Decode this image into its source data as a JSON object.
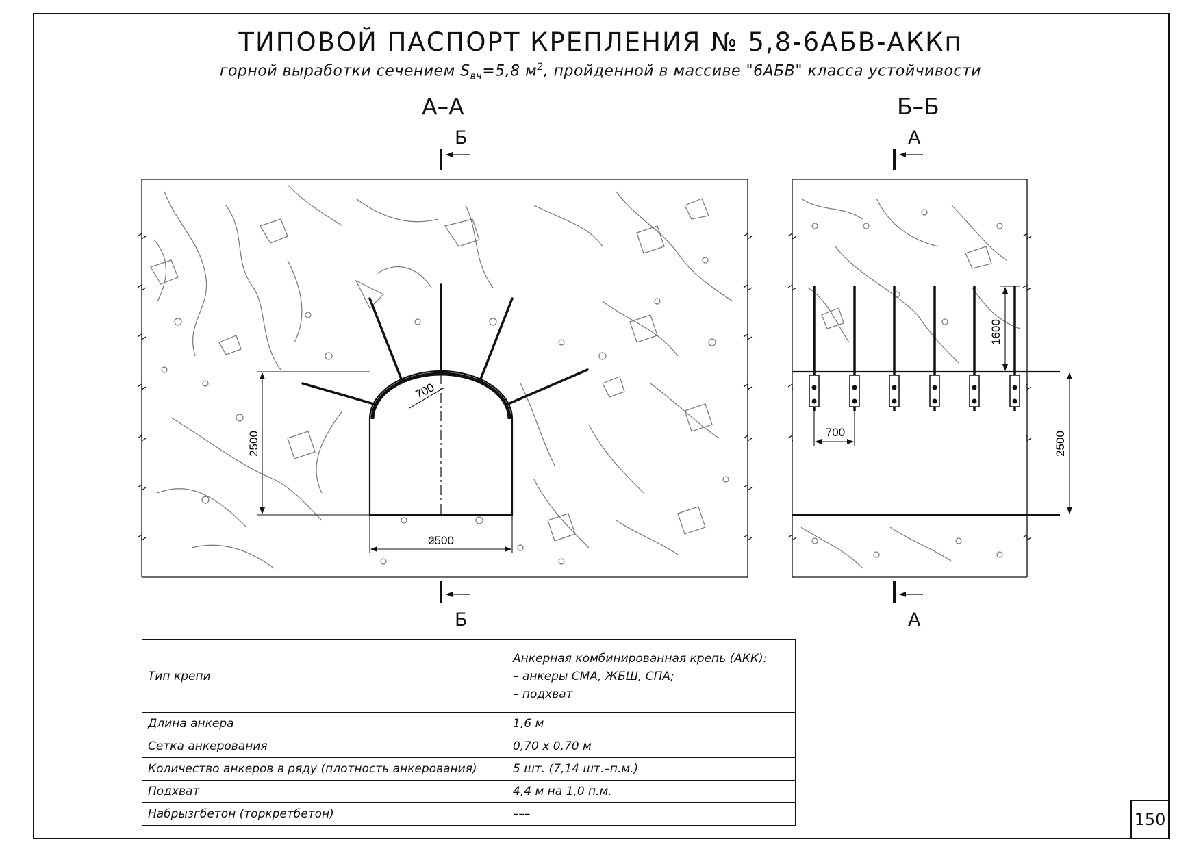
{
  "title": "ТИПОВОЙ ПАСПОРТ КРЕПЛЕНИЯ № 5,8-6АБВ-АККп",
  "subtitle": {
    "before": "горной выработки сечением S",
    "sub": "вч",
    "middle": "=5,8 м",
    "sup": "2",
    "after": ", пройденной в массиве \"6АБВ\" класса устойчивости"
  },
  "sections": {
    "aa": {
      "label": "А–А",
      "cut_top": "Б",
      "cut_bottom": "Б",
      "dims": {
        "height": "2500",
        "width": "2500",
        "spacing": "700"
      }
    },
    "bb": {
      "label": "Б–Б",
      "cut_top": "А",
      "cut_bottom": "А",
      "dims": {
        "height": "2500",
        "anchor_length": "1600",
        "spacing": "700"
      }
    }
  },
  "table": {
    "rows": [
      {
        "label": "Тип крепи",
        "value_lines": [
          "Анкерная комбинированная крепь (АКК):",
          "– анкеры СМА, ЖБШ, СПА;",
          "– подхват"
        ]
      },
      {
        "label": "Длина анкера",
        "value": "1,6 м"
      },
      {
        "label": "Сетка анкерования",
        "value": "0,70 х 0,70 м"
      },
      {
        "label": "Количество анкеров в ряду (плотность анкерования)",
        "value": "5 шт. (7,14 шт.–п.м.)"
      },
      {
        "label": "Подхват",
        "value": "4,4 м на 1,0 п.м."
      },
      {
        "label": "Набрызгбетон (торкретбетон)",
        "value": "–––"
      }
    ]
  },
  "page_number": "150"
}
